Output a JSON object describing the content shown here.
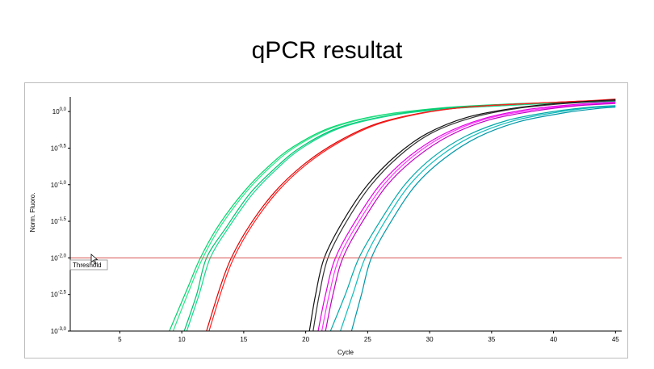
{
  "page": {
    "title": "qPCR resultat"
  },
  "chart_data": {
    "type": "line",
    "title": "qPCR resultat",
    "xlabel": "Cycle",
    "ylabel": "Norm. Fluoro.",
    "xlim": [
      1,
      45.5
    ],
    "ylim_log10": [
      -3.0,
      0.2
    ],
    "y_scale": "log",
    "x_ticks": [
      5,
      10,
      15,
      20,
      25,
      30,
      35,
      40,
      45
    ],
    "y_ticks": [
      {
        "exp": 0.0,
        "label": "0,0"
      },
      {
        "exp": -0.5,
        "label": "-0,5"
      },
      {
        "exp": -1.0,
        "label": "-1,0"
      },
      {
        "exp": -1.5,
        "label": "-1,5"
      },
      {
        "exp": -2.0,
        "label": "-2,0"
      },
      {
        "exp": -2.5,
        "label": "-2,5"
      },
      {
        "exp": -3.0,
        "label": "-3,0"
      }
    ],
    "y_tick_base": "10",
    "threshold": {
      "label": "Threshold",
      "exp": -2.0,
      "color": "#d9534f"
    },
    "grid": false,
    "series": [
      {
        "color": "#00d26a",
        "points": [
          [
            9.0,
            -3.0
          ],
          [
            10.5,
            -2.4
          ],
          [
            11.5,
            -2.0
          ],
          [
            13,
            -1.55
          ],
          [
            15,
            -1.1
          ],
          [
            17,
            -0.75
          ],
          [
            19,
            -0.48
          ],
          [
            22,
            -0.22
          ],
          [
            26,
            -0.05
          ],
          [
            31,
            0.05
          ],
          [
            36,
            0.1
          ],
          [
            41,
            0.13
          ],
          [
            45,
            0.15
          ]
        ]
      },
      {
        "color": "#2ee58a",
        "points": [
          [
            9.3,
            -3.0
          ],
          [
            10.7,
            -2.4
          ],
          [
            11.7,
            -2.0
          ],
          [
            13.2,
            -1.55
          ],
          [
            15.2,
            -1.1
          ],
          [
            17.2,
            -0.75
          ],
          [
            19.2,
            -0.48
          ],
          [
            22.2,
            -0.22
          ],
          [
            26.2,
            -0.05
          ],
          [
            31,
            0.04
          ],
          [
            36,
            0.09
          ],
          [
            41,
            0.12
          ],
          [
            45,
            0.14
          ]
        ]
      },
      {
        "color": "#00c070",
        "points": [
          [
            10.2,
            -3.0
          ],
          [
            11.2,
            -2.5
          ],
          [
            12.0,
            -2.0
          ],
          [
            13.6,
            -1.58
          ],
          [
            15.5,
            -1.12
          ],
          [
            17.5,
            -0.78
          ],
          [
            19.5,
            -0.5
          ],
          [
            22.5,
            -0.23
          ],
          [
            26.5,
            -0.06
          ],
          [
            31,
            0.04
          ],
          [
            36,
            0.09
          ],
          [
            41,
            0.12
          ],
          [
            45,
            0.14
          ]
        ]
      },
      {
        "color": "#16d98c",
        "points": [
          [
            10.4,
            -3.0
          ],
          [
            11.4,
            -2.5
          ],
          [
            12.3,
            -2.0
          ],
          [
            13.8,
            -1.58
          ],
          [
            15.7,
            -1.13
          ],
          [
            17.7,
            -0.78
          ],
          [
            19.7,
            -0.5
          ],
          [
            22.7,
            -0.23
          ],
          [
            26.7,
            -0.06
          ],
          [
            31,
            0.03
          ],
          [
            36,
            0.08
          ],
          [
            41,
            0.12
          ],
          [
            45,
            0.14
          ]
        ]
      },
      {
        "color": "#e00000",
        "points": [
          [
            12.0,
            -3.0
          ],
          [
            13.1,
            -2.4
          ],
          [
            14.0,
            -2.0
          ],
          [
            15.5,
            -1.55
          ],
          [
            17.5,
            -1.1
          ],
          [
            19.8,
            -0.73
          ],
          [
            22.5,
            -0.42
          ],
          [
            25.5,
            -0.18
          ],
          [
            29,
            -0.03
          ],
          [
            33,
            0.06
          ],
          [
            38,
            0.11
          ],
          [
            42,
            0.14
          ],
          [
            45,
            0.16
          ]
        ]
      },
      {
        "color": "#ff2020",
        "points": [
          [
            12.2,
            -3.0
          ],
          [
            13.3,
            -2.4
          ],
          [
            14.2,
            -2.0
          ],
          [
            15.7,
            -1.55
          ],
          [
            17.7,
            -1.1
          ],
          [
            20.0,
            -0.73
          ],
          [
            22.7,
            -0.42
          ],
          [
            25.7,
            -0.18
          ],
          [
            29.2,
            -0.03
          ],
          [
            33,
            0.06
          ],
          [
            38,
            0.11
          ],
          [
            42,
            0.14
          ],
          [
            45,
            0.17
          ]
        ]
      },
      {
        "color": "#111111",
        "points": [
          [
            20.3,
            -3.0
          ],
          [
            20.8,
            -2.5
          ],
          [
            21.5,
            -2.0
          ],
          [
            23.0,
            -1.5
          ],
          [
            25.0,
            -1.0
          ],
          [
            27.3,
            -0.6
          ],
          [
            29.8,
            -0.3
          ],
          [
            33,
            -0.08
          ],
          [
            37,
            0.05
          ],
          [
            41,
            0.12
          ],
          [
            45,
            0.16
          ]
        ]
      },
      {
        "color": "#333333",
        "points": [
          [
            20.6,
            -3.0
          ],
          [
            21.1,
            -2.5
          ],
          [
            21.8,
            -2.0
          ],
          [
            23.3,
            -1.5
          ],
          [
            25.3,
            -1.0
          ],
          [
            27.6,
            -0.6
          ],
          [
            30.1,
            -0.3
          ],
          [
            33.3,
            -0.09
          ],
          [
            37,
            0.04
          ],
          [
            41,
            0.11
          ],
          [
            45,
            0.15
          ]
        ]
      },
      {
        "color": "#e000e0",
        "points": [
          [
            21.0,
            -3.0
          ],
          [
            21.6,
            -2.5
          ],
          [
            22.4,
            -2.0
          ],
          [
            24.0,
            -1.5
          ],
          [
            26.0,
            -1.0
          ],
          [
            28.3,
            -0.62
          ],
          [
            31.0,
            -0.32
          ],
          [
            34.3,
            -0.1
          ],
          [
            38,
            0.03
          ],
          [
            42,
            0.1
          ],
          [
            45,
            0.13
          ]
        ]
      },
      {
        "color": "#ff33ff",
        "points": [
          [
            21.3,
            -3.0
          ],
          [
            21.9,
            -2.5
          ],
          [
            22.7,
            -2.0
          ],
          [
            24.3,
            -1.5
          ],
          [
            26.3,
            -1.0
          ],
          [
            28.6,
            -0.62
          ],
          [
            31.3,
            -0.32
          ],
          [
            34.6,
            -0.1
          ],
          [
            38.3,
            0.02
          ],
          [
            42,
            0.09
          ],
          [
            45,
            0.12
          ]
        ]
      },
      {
        "color": "#c400c4",
        "points": [
          [
            21.6,
            -3.0
          ],
          [
            22.2,
            -2.5
          ],
          [
            23.0,
            -2.0
          ],
          [
            24.6,
            -1.5
          ],
          [
            26.6,
            -1.0
          ],
          [
            28.9,
            -0.63
          ],
          [
            31.6,
            -0.33
          ],
          [
            34.9,
            -0.11
          ],
          [
            38.6,
            0.01
          ],
          [
            42,
            0.08
          ],
          [
            45,
            0.11
          ]
        ]
      },
      {
        "color": "#00a8a8",
        "points": [
          [
            22.0,
            -3.0
          ],
          [
            23.2,
            -2.5
          ],
          [
            24.3,
            -2.0
          ],
          [
            26.0,
            -1.5
          ],
          [
            28.0,
            -1.0
          ],
          [
            30.3,
            -0.62
          ],
          [
            33.0,
            -0.33
          ],
          [
            36.3,
            -0.12
          ],
          [
            40,
            0.0
          ],
          [
            43,
            0.06
          ],
          [
            45,
            0.08
          ]
        ]
      },
      {
        "color": "#11bcbc",
        "points": [
          [
            22.8,
            -3.0
          ],
          [
            23.8,
            -2.5
          ],
          [
            24.8,
            -2.0
          ],
          [
            26.4,
            -1.5
          ],
          [
            28.4,
            -1.0
          ],
          [
            30.7,
            -0.63
          ],
          [
            33.4,
            -0.34
          ],
          [
            36.7,
            -0.13
          ],
          [
            40.3,
            -0.01
          ],
          [
            43,
            0.05
          ],
          [
            45,
            0.07
          ]
        ]
      },
      {
        "color": "#0097a7",
        "points": [
          [
            23.7,
            -3.0
          ],
          [
            24.5,
            -2.5
          ],
          [
            25.3,
            -2.0
          ],
          [
            26.9,
            -1.5
          ],
          [
            28.9,
            -1.0
          ],
          [
            31.2,
            -0.64
          ],
          [
            33.9,
            -0.35
          ],
          [
            37.2,
            -0.14
          ],
          [
            40.8,
            -0.02
          ],
          [
            43.5,
            0.04
          ],
          [
            45,
            0.06
          ]
        ]
      }
    ]
  }
}
